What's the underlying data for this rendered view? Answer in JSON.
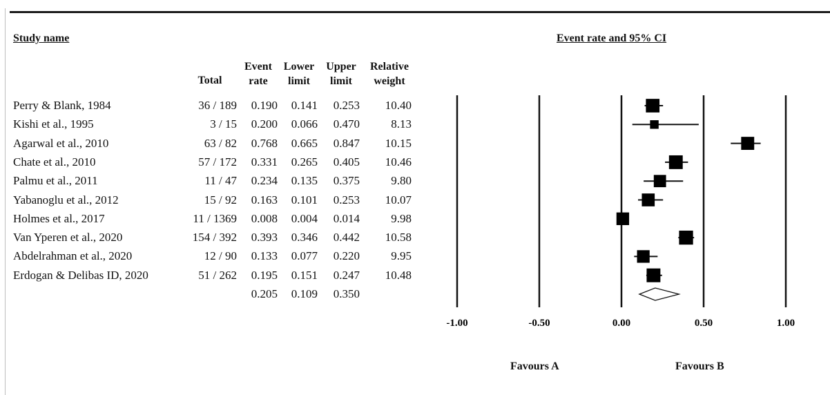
{
  "headers": {
    "study_name": "Study name",
    "plot_title": "Event rate and 95% CI",
    "total": "Total",
    "event_rate": [
      "Event",
      "rate"
    ],
    "lower_limit": [
      "Lower",
      "limit"
    ],
    "upper_limit": [
      "Upper",
      "limit"
    ],
    "relative_weight": [
      "Relative",
      "weight"
    ]
  },
  "favours": {
    "a": "Favours A",
    "b": "Favours B"
  },
  "chart_data": {
    "type": "forest",
    "title": "Event rate and 95% CI",
    "xlim": [
      -1.0,
      1.0
    ],
    "x_ticks": [
      -1.0,
      -0.5,
      0.0,
      0.5,
      1.0
    ],
    "x_tick_labels": [
      "-1.00",
      "-0.50",
      "0.00",
      "0.50",
      "1.00"
    ],
    "studies": [
      {
        "name": "Perry & Blank, 1984",
        "total": "36 / 189",
        "event_rate": 0.19,
        "lower": 0.141,
        "upper": 0.253,
        "weight": 10.4,
        "event_rate_text": "0.190",
        "lower_text": "0.141",
        "upper_text": "0.253",
        "weight_text": "10.40"
      },
      {
        "name": "Kishi et al., 1995",
        "total": "3 / 15",
        "event_rate": 0.2,
        "lower": 0.066,
        "upper": 0.47,
        "weight": 8.13,
        "event_rate_text": "0.200",
        "lower_text": "0.066",
        "upper_text": "0.470",
        "weight_text": "8.13"
      },
      {
        "name": "Agarwal et al., 2010",
        "total": "63 / 82",
        "event_rate": 0.768,
        "lower": 0.665,
        "upper": 0.847,
        "weight": 10.15,
        "event_rate_text": "0.768",
        "lower_text": "0.665",
        "upper_text": "0.847",
        "weight_text": "10.15"
      },
      {
        "name": "Chate et al., 2010",
        "total": "57 / 172",
        "event_rate": 0.331,
        "lower": 0.265,
        "upper": 0.405,
        "weight": 10.46,
        "event_rate_text": "0.331",
        "lower_text": "0.265",
        "upper_text": "0.405",
        "weight_text": "10.46"
      },
      {
        "name": "Palmu et al., 2011",
        "total": "11 / 47",
        "event_rate": 0.234,
        "lower": 0.135,
        "upper": 0.375,
        "weight": 9.8,
        "event_rate_text": "0.234",
        "lower_text": "0.135",
        "upper_text": "0.375",
        "weight_text": "9.80"
      },
      {
        "name": "Yabanoglu et al., 2012",
        "total": "15 / 92",
        "event_rate": 0.163,
        "lower": 0.101,
        "upper": 0.253,
        "weight": 10.07,
        "event_rate_text": "0.163",
        "lower_text": "0.101",
        "upper_text": "0.253",
        "weight_text": "10.07"
      },
      {
        "name": "Holmes et al., 2017",
        "total": "11 / 1369",
        "event_rate": 0.008,
        "lower": 0.004,
        "upper": 0.014,
        "weight": 9.98,
        "event_rate_text": "0.008",
        "lower_text": "0.004",
        "upper_text": "0.014",
        "weight_text": "9.98"
      },
      {
        "name": "Van Yperen et al., 2020",
        "total": "154 / 392",
        "event_rate": 0.393,
        "lower": 0.346,
        "upper": 0.442,
        "weight": 10.58,
        "event_rate_text": "0.393",
        "lower_text": "0.346",
        "upper_text": "0.442",
        "weight_text": "10.58"
      },
      {
        "name": "Abdelrahman et al., 2020",
        "total": "12 / 90",
        "event_rate": 0.133,
        "lower": 0.077,
        "upper": 0.22,
        "weight": 9.95,
        "event_rate_text": "0.133",
        "lower_text": "0.077",
        "upper_text": "0.220",
        "weight_text": "9.95"
      },
      {
        "name": "Erdogan & Delibas ID, 2020",
        "total": "51 / 262",
        "event_rate": 0.195,
        "lower": 0.151,
        "upper": 0.247,
        "weight": 10.48,
        "event_rate_text": "0.195",
        "lower_text": "0.151",
        "upper_text": "0.247",
        "weight_text": "10.48"
      }
    ],
    "summary": {
      "event_rate": 0.205,
      "lower": 0.109,
      "upper": 0.35,
      "event_rate_text": "0.205",
      "lower_text": "0.109",
      "upper_text": "0.350"
    }
  }
}
